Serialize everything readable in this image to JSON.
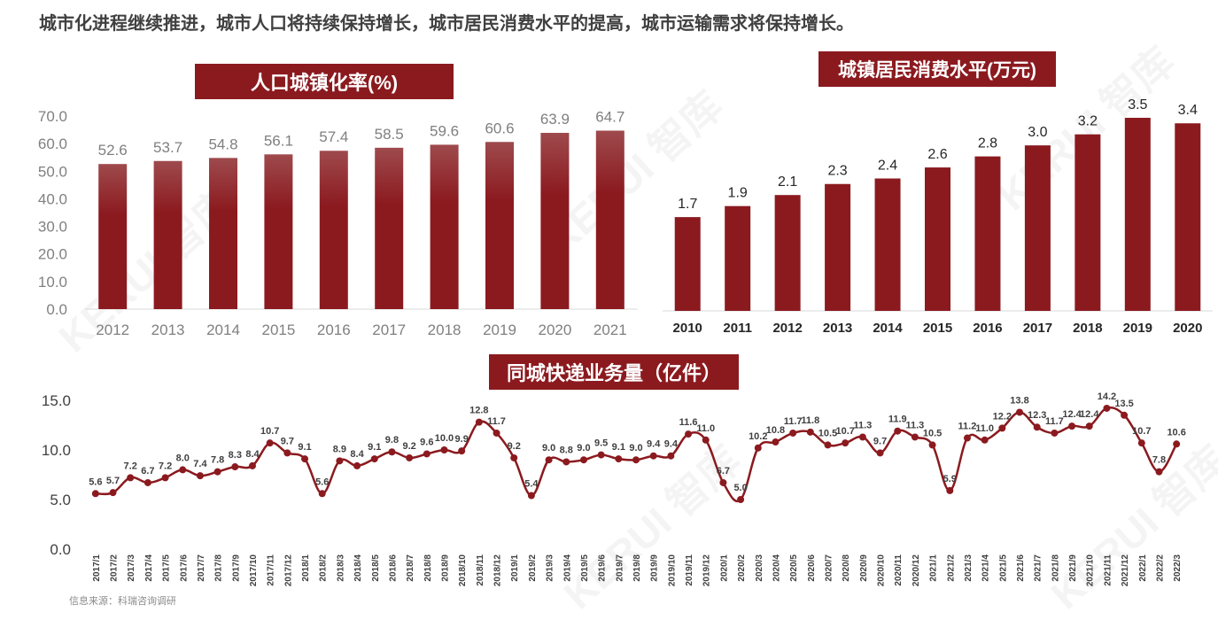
{
  "headline": "城市化进程继续推进，城市人口将持续保持增长，城市居民消费水平的提高，城市运输需求将保持增长。",
  "source": "信息来源：科瑞咨询调研",
  "watermark": "KERUI 智库",
  "colors": {
    "bar": "#8b1a1f",
    "bar_light": "#9e4a4d",
    "line": "#8b1a1f",
    "title_bg": "#8b1a1f"
  },
  "chart_data": [
    {
      "type": "bar",
      "title": "人口城镇化率(%)",
      "categories": [
        "2012",
        "2013",
        "2014",
        "2015",
        "2016",
        "2017",
        "2018",
        "2019",
        "2020",
        "2021"
      ],
      "values": [
        52.6,
        53.7,
        54.8,
        56.1,
        57.4,
        58.5,
        59.6,
        60.6,
        63.9,
        64.7
      ],
      "value_labels": [
        "52.6",
        "53.7",
        "54.8",
        "56.1",
        "57.4",
        "58.5",
        "59.6",
        "60.6",
        "63.9",
        "64.7"
      ],
      "ylim": [
        0,
        70
      ],
      "yticks": [
        "0.0",
        "10.0",
        "20.0",
        "30.0",
        "40.0",
        "50.0",
        "60.0",
        "70.0"
      ],
      "xlabel": "",
      "ylabel": ""
    },
    {
      "type": "bar",
      "title": "城镇居民消费水平(万元)",
      "categories": [
        "2010",
        "2011",
        "2012",
        "2013",
        "2014",
        "2015",
        "2016",
        "2017",
        "2018",
        "2019",
        "2020"
      ],
      "values": [
        1.7,
        1.9,
        2.1,
        2.3,
        2.4,
        2.6,
        2.8,
        3.0,
        3.2,
        3.5,
        3.4
      ],
      "value_labels": [
        "1.7",
        "1.9",
        "2.1",
        "2.3",
        "2.4",
        "2.6",
        "2.8",
        "3.0",
        "3.2",
        "3.5",
        "3.4"
      ],
      "ylim": [
        0,
        3.5
      ],
      "xlabel": "",
      "ylabel": ""
    },
    {
      "type": "line",
      "title": "同城快递业务量（亿件）",
      "categories": [
        "2017/1",
        "2017/2",
        "2017/3",
        "2017/4",
        "2017/5",
        "2017/6",
        "2017/7",
        "2017/8",
        "2017/9",
        "2017/10",
        "2017/11",
        "2017/12",
        "2018/1",
        "2018/2",
        "2018/3",
        "2018/4",
        "2018/5",
        "2018/6",
        "2018/7",
        "2018/8",
        "2018/9",
        "2018/10",
        "2018/11",
        "2018/12",
        "2019/1",
        "2019/2",
        "2019/3",
        "2019/4",
        "2019/5",
        "2019/6",
        "2019/7",
        "2019/8",
        "2019/9",
        "2019/10",
        "2019/11",
        "2019/12",
        "2020/1",
        "2020/2",
        "2020/3",
        "2020/4",
        "2020/5",
        "2020/6",
        "2020/7",
        "2020/8",
        "2020/9",
        "2020/10",
        "2020/11",
        "2020/12",
        "2021/1",
        "2021/2",
        "2021/3",
        "2021/4",
        "2021/5",
        "2021/6",
        "2021/7",
        "2021/8",
        "2021/9",
        "2021/10",
        "2021/11",
        "2021/12",
        "2022/1",
        "2022/2",
        "2022/3"
      ],
      "values": [
        5.6,
        5.7,
        7.2,
        6.7,
        7.2,
        8.0,
        7.4,
        7.8,
        8.3,
        8.4,
        10.7,
        9.7,
        9.1,
        5.6,
        8.9,
        8.4,
        9.1,
        9.8,
        9.2,
        9.6,
        10.0,
        9.9,
        12.8,
        11.7,
        9.2,
        5.4,
        9.0,
        8.8,
        9.0,
        9.5,
        9.1,
        9.0,
        9.4,
        9.4,
        11.6,
        11.0,
        6.7,
        5.0,
        10.2,
        10.8,
        11.7,
        11.8,
        10.5,
        10.7,
        11.3,
        9.7,
        11.9,
        11.3,
        10.5,
        5.9,
        11.2,
        11.0,
        12.2,
        13.8,
        12.3,
        11.7,
        12.4,
        12.4,
        14.2,
        13.5,
        10.7,
        7.8,
        10.6
      ],
      "value_labels": [
        "5.6",
        "5.7",
        "7.2",
        "6.7",
        "7.2",
        "8.0",
        "7.4",
        "7.8",
        "8.3",
        "8.4",
        "10.7",
        "9.7",
        "9.1",
        "5.6",
        "8.9",
        "8.4",
        "9.1",
        "9.8",
        "9.2",
        "9.6",
        "10.0",
        "9.9",
        "12.8",
        "11.7",
        "9.2",
        "5.4",
        "9.0",
        "8.8",
        "9.0",
        "9.5",
        "9.1",
        "9.0",
        "9.4",
        "9.4",
        "11.6",
        "11.0",
        "6.7",
        "5.0",
        "10.2",
        "10.8",
        "11.7",
        "11.8",
        "10.5",
        "10.7",
        "11.3",
        "9.7",
        "11.9",
        "11.3",
        "10.5",
        "5.9",
        "11.2",
        "11.0",
        "12.2",
        "13.8",
        "12.3",
        "11.7",
        "12.4",
        "12.4",
        "14.2",
        "13.5",
        "10.7",
        "7.8",
        "10.6"
      ],
      "ylim": [
        0,
        15
      ],
      "yticks": [
        "0.0",
        "5.0",
        "10.0",
        "15.0"
      ],
      "xlabel": "",
      "ylabel": ""
    }
  ]
}
